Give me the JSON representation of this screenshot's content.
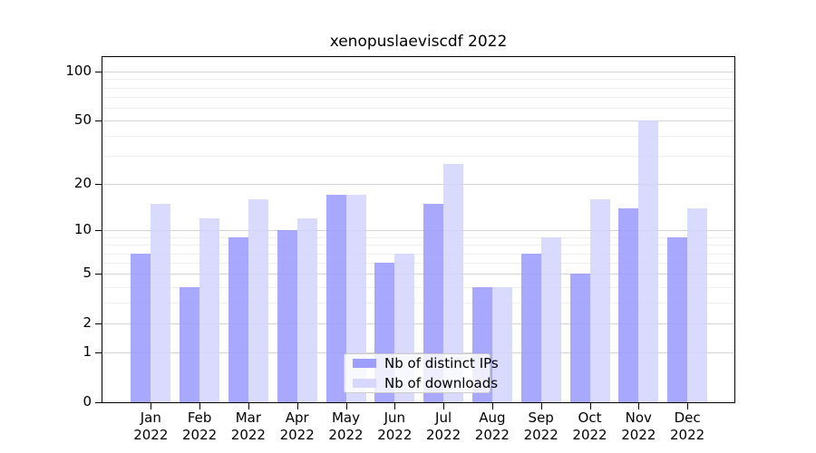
{
  "chart_data": {
    "type": "bar",
    "title": "xenopuslaeviscdf 2022",
    "months": [
      "Jan",
      "Feb",
      "Mar",
      "Apr",
      "May",
      "Jun",
      "Jul",
      "Aug",
      "Sep",
      "Oct",
      "Nov",
      "Dec"
    ],
    "year": "2022",
    "series": [
      {
        "name": "Nb of distinct IPs",
        "color": "#9999ff",
        "values": [
          7,
          4,
          9,
          10,
          17,
          6,
          15,
          4,
          7,
          5,
          14,
          9
        ]
      },
      {
        "name": "Nb of downloads",
        "color": "#d4d4ff",
        "values": [
          15,
          12,
          16,
          12,
          17,
          7,
          27,
          4,
          9,
          16,
          50,
          14
        ]
      }
    ],
    "yticks": [
      0,
      1,
      2,
      5,
      10,
      20,
      50,
      100
    ],
    "minor_yticks": [
      3,
      4,
      6,
      7,
      8,
      9,
      30,
      40,
      60,
      70,
      80,
      90
    ],
    "y_scale": "log10(1+x)",
    "ylim": [
      0,
      123
    ],
    "grid": true,
    "legend_position": "lower center"
  }
}
